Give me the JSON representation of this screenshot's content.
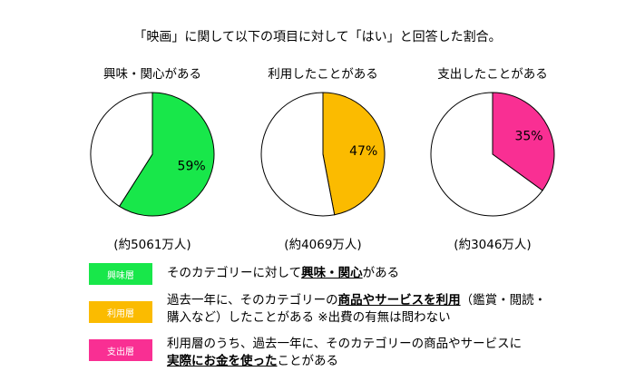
{
  "title": "「映画」に関して以下の項目に対して「はい」と回答した割合。",
  "chart_data": [
    {
      "type": "pie",
      "title": "興味・関心がある",
      "values": [
        59,
        41
      ],
      "labels": [
        "59%",
        ""
      ],
      "colors": [
        "#18e74a",
        "#ffffff"
      ],
      "total": "(約5061万人)"
    },
    {
      "type": "pie",
      "title": "利用したことがある",
      "values": [
        47,
        53
      ],
      "labels": [
        "47%",
        ""
      ],
      "colors": [
        "#fbbb00",
        "#ffffff"
      ],
      "total": "(約4069万人)"
    },
    {
      "type": "pie",
      "title": "支出したことがある",
      "values": [
        35,
        65
      ],
      "labels": [
        "35%",
        ""
      ],
      "colors": [
        "#f92f93",
        "#ffffff"
      ],
      "total": "(約3046万人)"
    }
  ],
  "legend": [
    {
      "name": "興味層",
      "color": "#18e74a",
      "line1_a": "そのカテゴリーに対して",
      "line1_em": "興味・関心",
      "line1_b": "がある",
      "line2_em": "",
      "line2_b": ""
    },
    {
      "name": "利用層",
      "color": "#fbbb00",
      "line1_a": "過去一年に、そのカテゴリーの",
      "line1_em": "商品やサービスを利用",
      "line1_b": "（鑑賞・閲読・",
      "line2_em": "",
      "line2_b": "購入など）したことがある ※出費の有無は問わない"
    },
    {
      "name": "支出層",
      "color": "#f92f93",
      "line1_a": "利用層のうち、過去一年に、そのカテゴリーの商品やサービスに",
      "line1_em": "",
      "line1_b": "",
      "line2_em": "実際にお金を使った",
      "line2_b": "ことがある"
    }
  ]
}
